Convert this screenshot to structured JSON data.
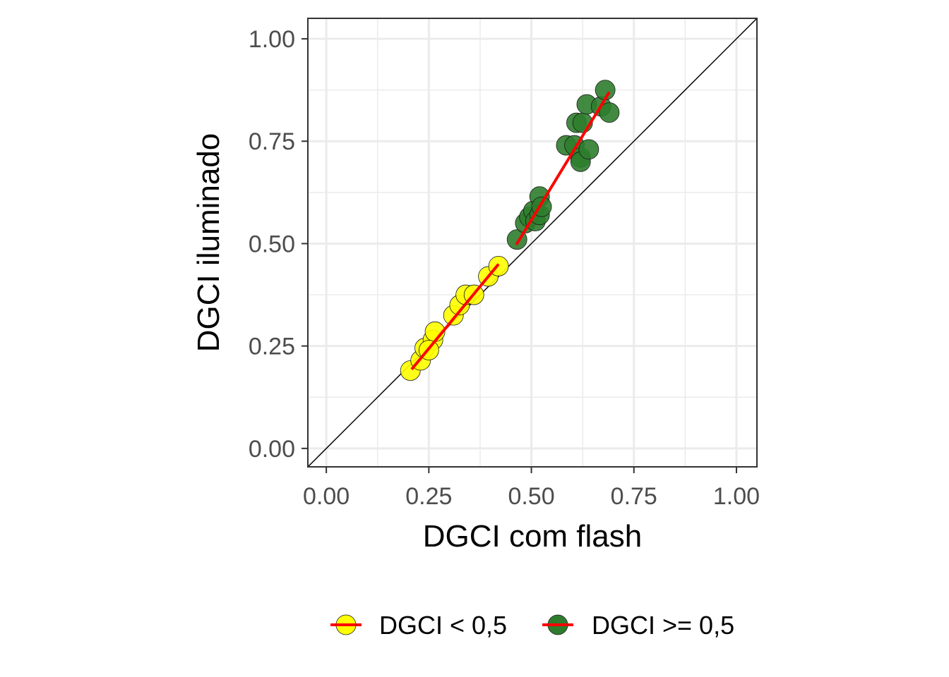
{
  "chart_data": {
    "type": "scatter",
    "xlabel": "DGCI com flash",
    "ylabel": "DGCI iluminado",
    "xlim": [
      -0.045,
      1.05
    ],
    "ylim": [
      -0.045,
      1.05
    ],
    "x_ticks": [
      "0.00",
      "0.25",
      "0.50",
      "0.75",
      "1.00"
    ],
    "y_ticks": [
      "0.00",
      "0.25",
      "0.50",
      "0.75",
      "1.00"
    ],
    "grid": true,
    "identity_line": true,
    "legend_position": "bottom",
    "series": [
      {
        "name": "DGCI < 0,5",
        "color": "#ffff00",
        "fit_color": "#ff0000",
        "points": [
          [
            0.205,
            0.19
          ],
          [
            0.23,
            0.215
          ],
          [
            0.24,
            0.245
          ],
          [
            0.26,
            0.265
          ],
          [
            0.265,
            0.285
          ],
          [
            0.25,
            0.24
          ],
          [
            0.31,
            0.325
          ],
          [
            0.325,
            0.35
          ],
          [
            0.34,
            0.375
          ],
          [
            0.36,
            0.375
          ],
          [
            0.395,
            0.42
          ],
          [
            0.42,
            0.445
          ]
        ],
        "fit": [
          [
            0.208,
            0.193
          ],
          [
            0.42,
            0.45
          ]
        ]
      },
      {
        "name": "DGCI >= 0,5",
        "color": "#2e7d2e",
        "fit_color": "#ff0000",
        "points": [
          [
            0.465,
            0.51
          ],
          [
            0.485,
            0.55
          ],
          [
            0.495,
            0.565
          ],
          [
            0.505,
            0.58
          ],
          [
            0.51,
            0.555
          ],
          [
            0.52,
            0.615
          ],
          [
            0.52,
            0.57
          ],
          [
            0.525,
            0.59
          ],
          [
            0.585,
            0.74
          ],
          [
            0.605,
            0.74
          ],
          [
            0.61,
            0.795
          ],
          [
            0.62,
            0.71
          ],
          [
            0.62,
            0.7
          ],
          [
            0.625,
            0.795
          ],
          [
            0.635,
            0.84
          ],
          [
            0.64,
            0.73
          ],
          [
            0.67,
            0.835
          ],
          [
            0.68,
            0.875
          ],
          [
            0.69,
            0.82
          ]
        ],
        "fit": [
          [
            0.463,
            0.497
          ],
          [
            0.69,
            0.87
          ]
        ]
      }
    ]
  }
}
